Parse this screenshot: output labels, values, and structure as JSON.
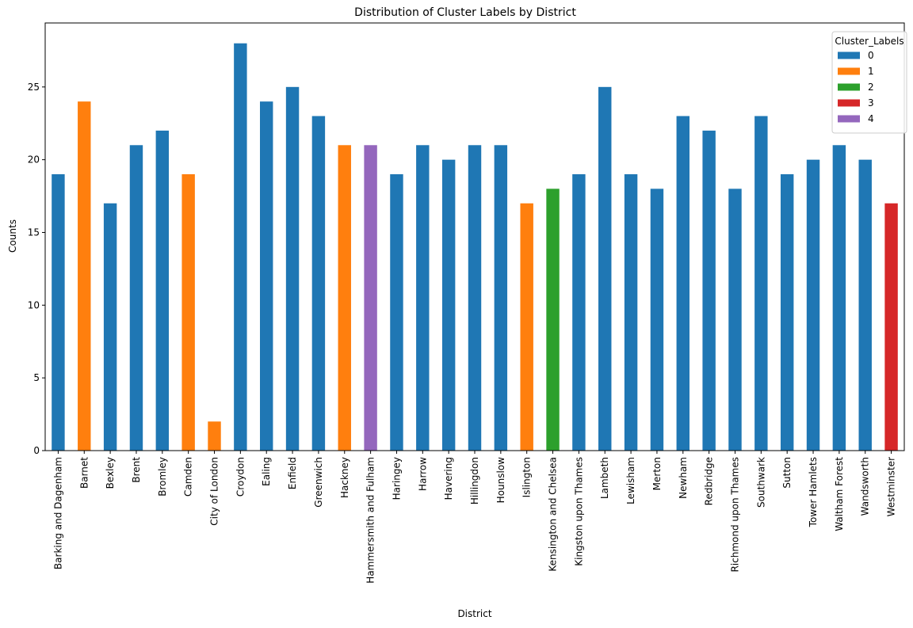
{
  "chart_data": {
    "type": "bar",
    "title": "Distribution of Cluster Labels by District",
    "xlabel": "District",
    "ylabel": "Counts",
    "ylim": [
      0,
      29.4
    ],
    "yticks": [
      0,
      5,
      10,
      15,
      20,
      25
    ],
    "grid": false,
    "legend": {
      "title": "Cluster_Labels",
      "placement": "top-right",
      "entries": [
        {
          "label": "0",
          "color": "#1f77b4"
        },
        {
          "label": "1",
          "color": "#ff7f0e"
        },
        {
          "label": "2",
          "color": "#2ca02c"
        },
        {
          "label": "3",
          "color": "#d62728"
        },
        {
          "label": "4",
          "color": "#9467bd"
        }
      ]
    },
    "categories": [
      "Barking and Dagenham",
      "Barnet",
      "Bexley",
      "Brent",
      "Bromley",
      "Camden",
      "City of London",
      "Croydon",
      "Ealing",
      "Enfield",
      "Greenwich",
      "Hackney",
      "Hammersmith and Fulham",
      "Haringey",
      "Harrow",
      "Havering",
      "Hillingdon",
      "Hounslow",
      "Islington",
      "Kensington and Chelsea",
      "Kingston upon Thames",
      "Lambeth",
      "Lewisham",
      "Merton",
      "Newham",
      "Redbridge",
      "Richmond upon Thames",
      "Southwark",
      "Sutton",
      "Tower Hamlets",
      "Waltham Forest",
      "Wandsworth",
      "Westminster"
    ],
    "values": [
      19,
      24,
      17,
      21,
      22,
      19,
      2,
      28,
      24,
      25,
      23,
      21,
      21,
      19,
      21,
      20,
      21,
      21,
      17,
      18,
      19,
      25,
      19,
      18,
      23,
      22,
      18,
      23,
      19,
      20,
      21,
      20,
      17
    ],
    "cluster": [
      0,
      1,
      0,
      0,
      0,
      1,
      1,
      0,
      0,
      0,
      0,
      1,
      4,
      0,
      0,
      0,
      0,
      0,
      1,
      2,
      0,
      0,
      0,
      0,
      0,
      0,
      0,
      0,
      0,
      0,
      0,
      0,
      3
    ]
  }
}
